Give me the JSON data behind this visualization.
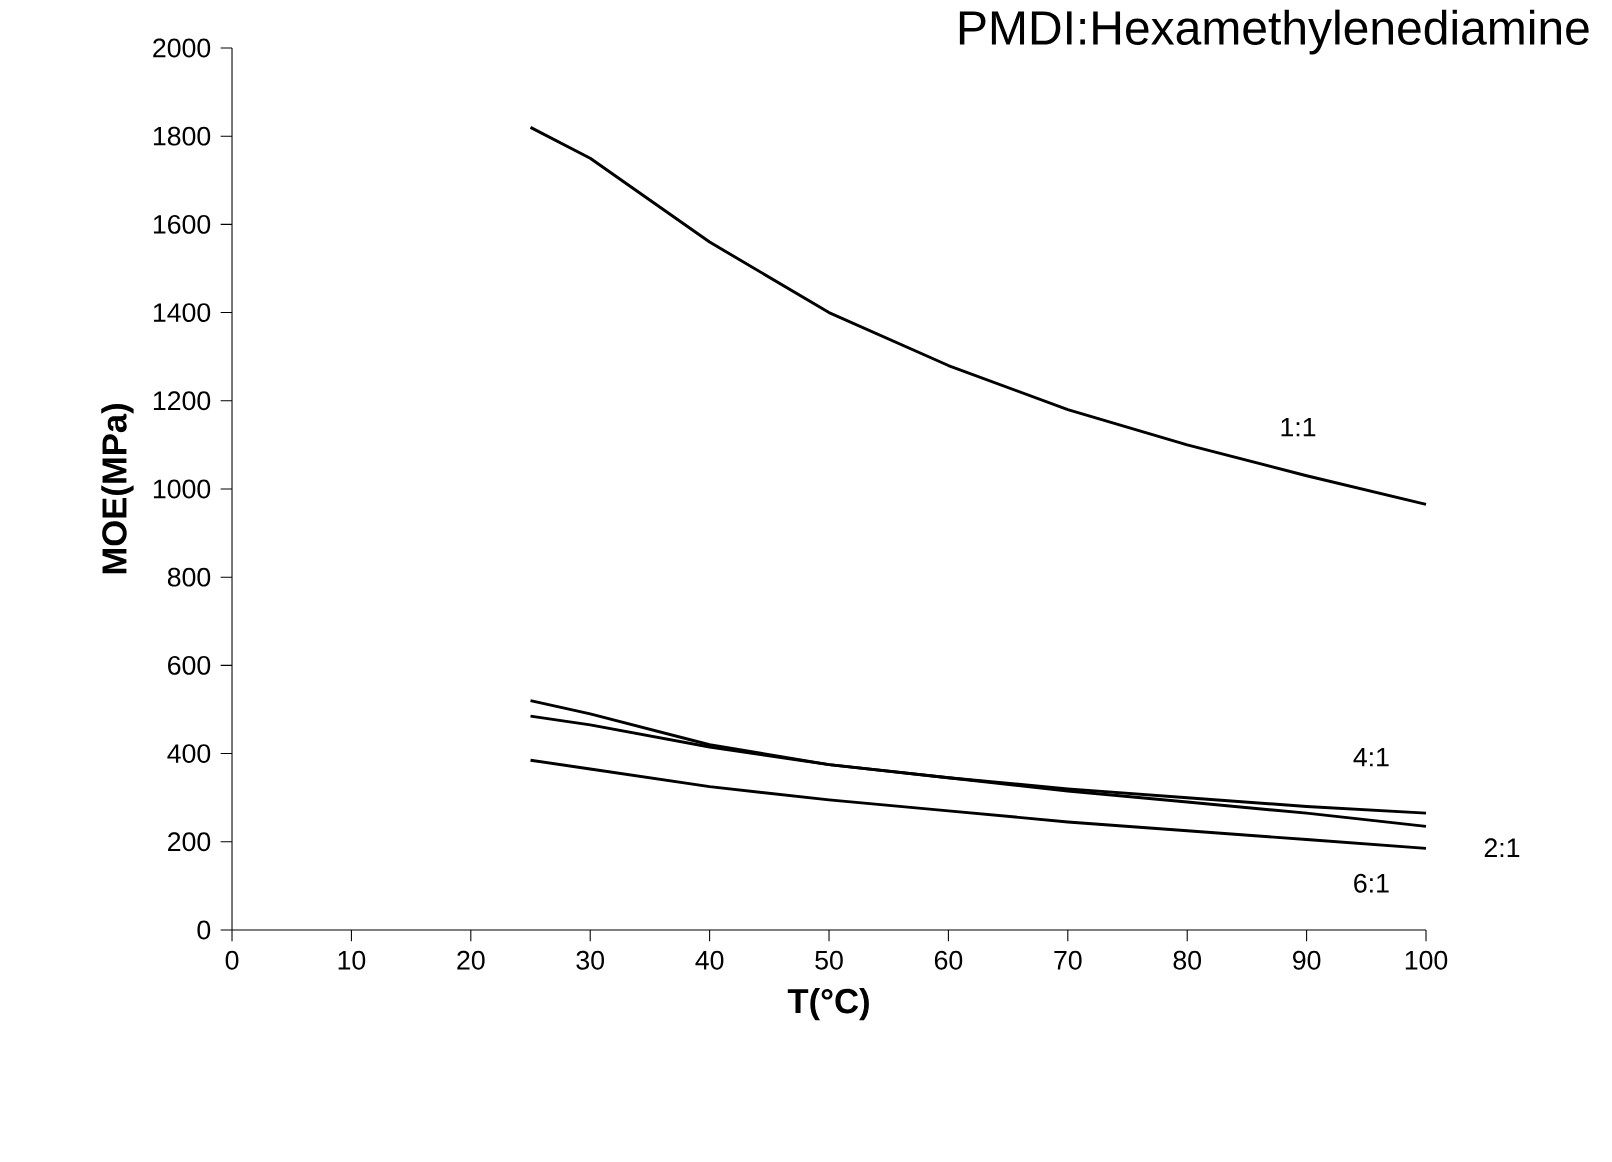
{
  "chart_data": {
    "type": "line",
    "title": "PMDI:Hexamethylenediamine",
    "xlabel": "T(°C)",
    "ylabel": "MOE(MPa)",
    "xlim": [
      0,
      100
    ],
    "xticks": [
      0,
      10,
      20,
      30,
      40,
      50,
      60,
      70,
      80,
      90,
      100
    ],
    "ylim": [
      0,
      2000
    ],
    "yticks": [
      0,
      200,
      400,
      600,
      800,
      1000,
      1200,
      1400,
      1600,
      1800,
      2000
    ],
    "grid": false,
    "marker": "none",
    "line_style": "solid",
    "series": [
      {
        "name": "1:1",
        "color": "#000000",
        "x": [
          25,
          30,
          40,
          50,
          60,
          70,
          80,
          90,
          100
        ],
        "values": [
          1820,
          1750,
          1560,
          1400,
          1280,
          1180,
          1100,
          1030,
          965
        ]
      },
      {
        "name": "4:1",
        "color": "#000000",
        "x": [
          25,
          30,
          40,
          50,
          60,
          70,
          80,
          90,
          100
        ],
        "values": [
          520,
          490,
          420,
          375,
          345,
          320,
          300,
          280,
          265
        ]
      },
      {
        "name": "2:1",
        "color": "#000000",
        "x": [
          25,
          30,
          40,
          50,
          60,
          70,
          80,
          90,
          100
        ],
        "values": [
          485,
          465,
          415,
          375,
          345,
          315,
          290,
          265,
          235
        ]
      },
      {
        "name": "6:1",
        "color": "#000000",
        "x": [
          25,
          30,
          40,
          50,
          60,
          70,
          80,
          90,
          100
        ],
        "values": [
          385,
          365,
          325,
          295,
          270,
          245,
          225,
          205,
          185
        ]
      }
    ]
  }
}
